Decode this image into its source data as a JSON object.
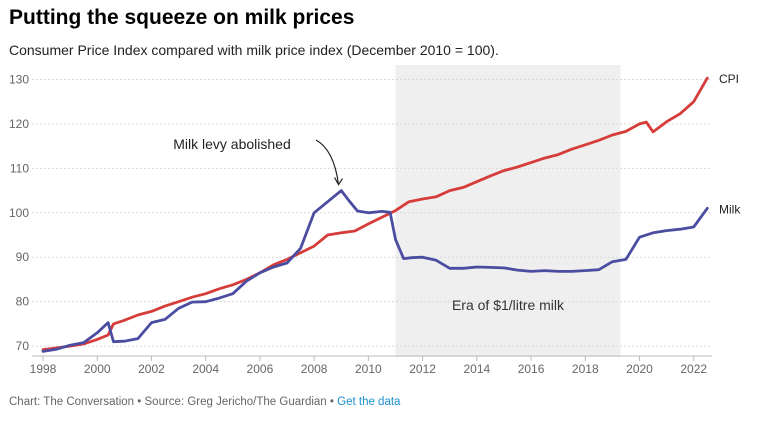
{
  "title": "Putting the squeeze on milk prices",
  "subtitle": "Consumer Price Index compared with milk price index (December 2010 = 100).",
  "footer": {
    "chart_credit": "Chart: The Conversation",
    "separator": "•",
    "source": "Source: Greg Jericho/The Guardian",
    "get_data_label": "Get the data"
  },
  "colors": {
    "cpi": "#d63d3a",
    "milk": "#4b4da1",
    "shade": "#efefef",
    "link": "#1a8fd0"
  },
  "chart_data": {
    "type": "line",
    "xlim": [
      1998,
      2022.6
    ],
    "ylim": [
      68,
      131
    ],
    "x_ticks": [
      1998,
      2000,
      2002,
      2004,
      2006,
      2008,
      2010,
      2012,
      2014,
      2016,
      2018,
      2020,
      2022
    ],
    "y_ticks": [
      70,
      80,
      90,
      100,
      110,
      120,
      130
    ],
    "grid": true,
    "shaded_region": {
      "x_start": 2011,
      "x_end": 2019.3,
      "label": "Era of $1/litre milk"
    },
    "annotations": [
      {
        "text": "Milk levy abolished",
        "x": 2008.9,
        "y": 105
      }
    ],
    "series": [
      {
        "name": "CPI",
        "x": [
          1998,
          1998.5,
          1999,
          1999.5,
          2000,
          2000.4,
          2000.6,
          2001,
          2001.5,
          2002,
          2002.5,
          2003,
          2003.5,
          2004,
          2004.5,
          2005,
          2005.5,
          2006,
          2006.5,
          2007,
          2007.5,
          2008,
          2008.5,
          2009,
          2009.5,
          2010,
          2010.5,
          2011,
          2011.5,
          2012,
          2012.5,
          2013,
          2013.5,
          2014,
          2014.5,
          2015,
          2015.5,
          2016,
          2016.5,
          2017,
          2017.5,
          2018,
          2018.5,
          2019,
          2019.5,
          2020,
          2020.25,
          2020.5,
          2021,
          2021.5,
          2022,
          2022.5
        ],
        "values": [
          69.2,
          69.6,
          70,
          70.5,
          71.5,
          72.5,
          75,
          75.8,
          77,
          77.8,
          79,
          80,
          81,
          81.8,
          82.9,
          83.8,
          85,
          86.5,
          88.3,
          89.5,
          91,
          92.5,
          95,
          95.5,
          95.9,
          97.5,
          99,
          100.5,
          102.5,
          103.1,
          103.6,
          105,
          105.7,
          107,
          108.3,
          109.5,
          110.3,
          111.3,
          112.3,
          113.1,
          114.3,
          115.3,
          116.3,
          117.5,
          118.3,
          120,
          120.4,
          118.2,
          120.5,
          122.3,
          125,
          130.3
        ]
      },
      {
        "name": "Milk",
        "x": [
          1998,
          1998.5,
          1999,
          1999.5,
          2000,
          2000.4,
          2000.6,
          2001,
          2001.5,
          2002,
          2002.5,
          2003,
          2003.5,
          2004,
          2004.5,
          2005,
          2005.5,
          2006,
          2006.5,
          2007,
          2007.5,
          2008,
          2008.5,
          2009,
          2009.3,
          2009.6,
          2010,
          2010.5,
          2010.8,
          2011,
          2011.3,
          2011.6,
          2012,
          2012.5,
          2013,
          2013.5,
          2014,
          2014.5,
          2015,
          2015.5,
          2016,
          2016.5,
          2017,
          2017.5,
          2018,
          2018.5,
          2019,
          2019.5,
          2020,
          2020.5,
          2021,
          2021.5,
          2022,
          2022.5
        ],
        "values": [
          68.8,
          69.3,
          70.2,
          70.8,
          73,
          75.3,
          71,
          71.1,
          71.7,
          75.3,
          76,
          78.5,
          79.9,
          80,
          80.8,
          81.8,
          84.6,
          86.5,
          87.8,
          88.7,
          92,
          100,
          102.5,
          105,
          102.6,
          100.4,
          100,
          100.3,
          100.1,
          94,
          89.7,
          89.9,
          90,
          89.3,
          87.5,
          87.5,
          87.8,
          87.7,
          87.6,
          87.1,
          86.8,
          87,
          86.8,
          86.8,
          87,
          87.2,
          89,
          89.5,
          94.5,
          95.5,
          96,
          96.3,
          96.8,
          101
        ]
      }
    ]
  }
}
